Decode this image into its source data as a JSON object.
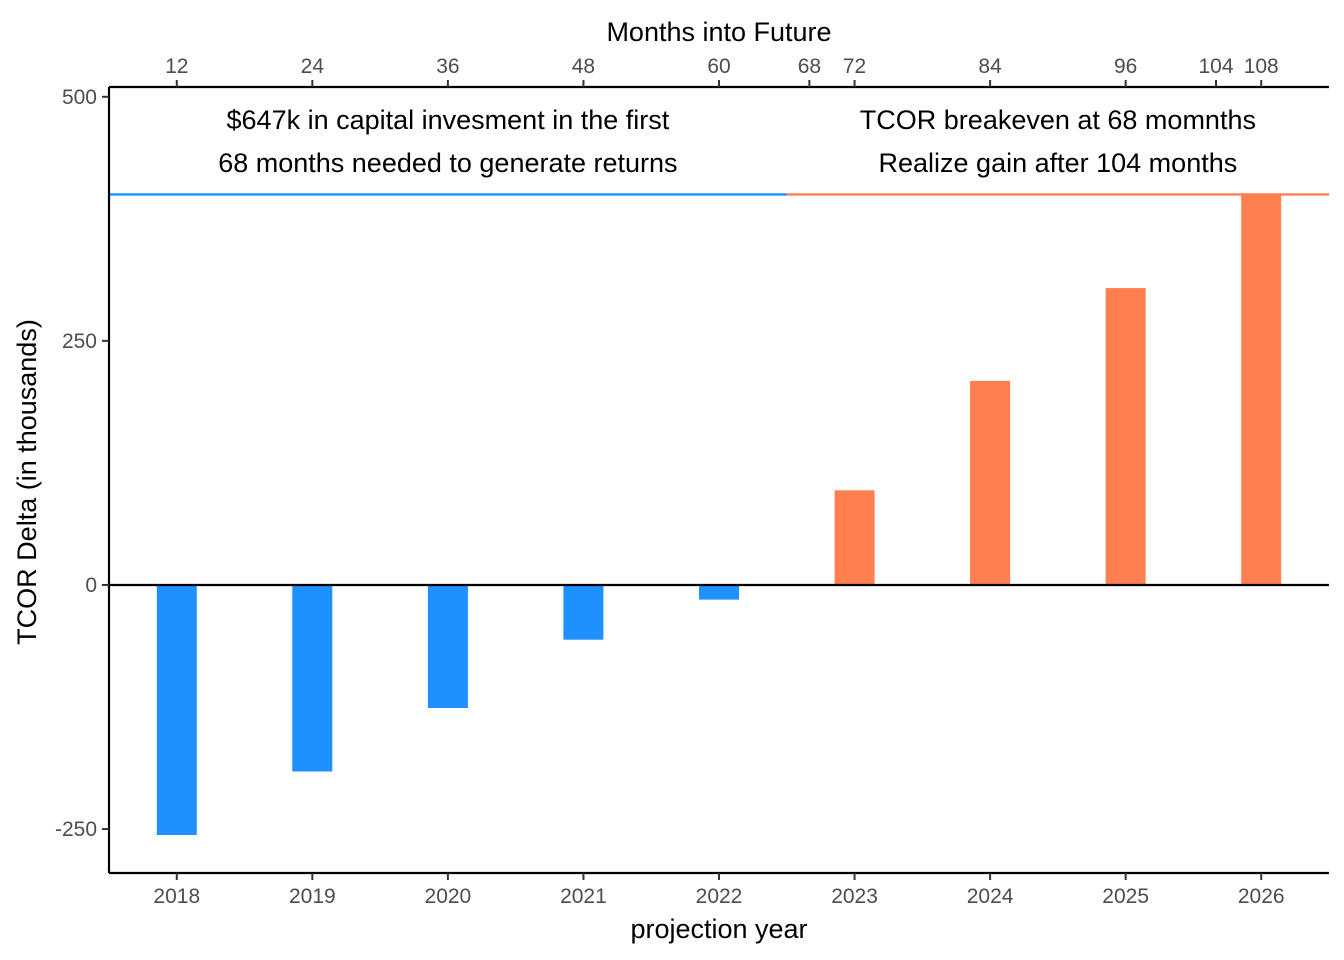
{
  "chart_data": {
    "type": "bar",
    "title": "",
    "xlabel": "projection year",
    "ylabel": "TCOR Delta (in thousands)",
    "top_axis_label": "Months into Future",
    "categories": [
      "2018",
      "2019",
      "2020",
      "2021",
      "2022",
      "2023",
      "2024",
      "2025",
      "2026"
    ],
    "values": [
      -256,
      -191,
      -126,
      -56,
      -15,
      97,
      209,
      304,
      400
    ],
    "bar_colors": [
      "#1E90FF",
      "#1E90FF",
      "#1E90FF",
      "#1E90FF",
      "#1E90FF",
      "#FF7F50",
      "#FF7F50",
      "#FF7F50",
      "#FF7F50"
    ],
    "ylim": [
      -295,
      510
    ],
    "xlim": [
      2017.5,
      2026.5
    ],
    "y_ticks": [
      -250,
      0,
      250,
      500
    ],
    "y_tick_labels": [
      "-250",
      "0",
      "250",
      "500"
    ],
    "top_ticks": [
      {
        "month": 12,
        "label": "12"
      },
      {
        "month": 24,
        "label": "24"
      },
      {
        "month": 36,
        "label": "36"
      },
      {
        "month": 48,
        "label": "48"
      },
      {
        "month": 60,
        "label": "60"
      },
      {
        "month": 68,
        "label": "68"
      },
      {
        "month": 72,
        "label": "72"
      },
      {
        "month": 84,
        "label": "84"
      },
      {
        "month": 96,
        "label": "96"
      },
      {
        "month": 104,
        "label": "104"
      },
      {
        "month": 108,
        "label": "108"
      }
    ],
    "reference_lines": [
      {
        "y": 400,
        "x_start": 2017.5,
        "x_end": 2022.5,
        "color": "#1E90FF"
      },
      {
        "y": 400,
        "x_start": 2022.5,
        "x_end": 2026.5,
        "color": "#FF7F50"
      },
      {
        "y": 0,
        "color": "#000000"
      }
    ],
    "annotations": [
      {
        "lines": [
          "$647k in capital invesment in the first",
          "68  months needed to generate returns"
        ],
        "x": 2020.0
      },
      {
        "lines": [
          "TCOR breakeven at 68 momnths",
          "Realize gain after 104 months"
        ],
        "x": 2024.5
      }
    ],
    "grid": false,
    "legend": "none"
  }
}
